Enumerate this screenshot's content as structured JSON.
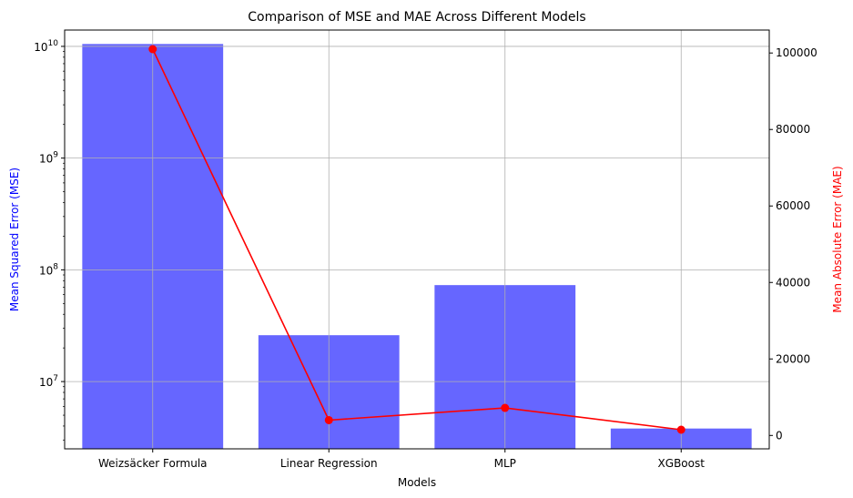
{
  "chart_data": {
    "type": "bar",
    "title": "Comparison of MSE and MAE Across Different Models",
    "xlabel": "Models",
    "categories": [
      "Weizsäcker Formula",
      "Linear Regression",
      "MLP",
      "XGBoost"
    ],
    "grid": true,
    "series": [
      {
        "type": "bar",
        "axis": "left",
        "color": "#6666ff",
        "values": [
          10500000000,
          26000000,
          73000000,
          3800000
        ]
      },
      {
        "type": "line",
        "axis": "right",
        "color": "#ff0000",
        "marker": "circle",
        "values": [
          101000,
          4000,
          7200,
          1500
        ]
      }
    ],
    "y_left": {
      "label": "Mean Squared Error (MSE)",
      "scale": "log",
      "color": "#0000ff",
      "ylim": [
        2500000,
        14000000000
      ],
      "ticks": [
        10000000,
        100000000,
        1000000000,
        10000000000
      ],
      "tick_labels": [
        {
          "base": "10",
          "exp": "7"
        },
        {
          "base": "10",
          "exp": "8"
        },
        {
          "base": "10",
          "exp": "9"
        },
        {
          "base": "10",
          "exp": "10"
        }
      ]
    },
    "y_right": {
      "label": "Mean Absolute Error (MAE)",
      "scale": "linear",
      "color": "#ff0000",
      "ylim": [
        -3500,
        106000
      ],
      "ticks": [
        0,
        20000,
        40000,
        60000,
        80000,
        100000
      ],
      "tick_labels": [
        "0",
        "20000",
        "40000",
        "60000",
        "80000",
        "100000"
      ]
    }
  }
}
